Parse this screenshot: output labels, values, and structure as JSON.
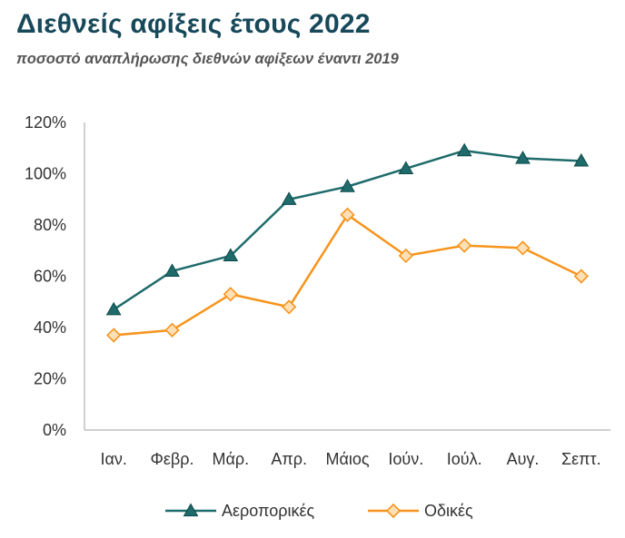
{
  "header": {
    "title": "Διεθνείς αφίξεις έτους 2022",
    "subtitle": "ποσοστό αναπλήρωσης διεθνών αφίξεων έναντι 2019"
  },
  "colors": {
    "title": "#17495a",
    "air": "#1f6b6b",
    "road": "#f7941d",
    "axis": "#bfbfbf"
  },
  "chart_data": {
    "type": "line",
    "title": "Διεθνείς αφίξεις έτους 2022",
    "subtitle": "ποσοστό αναπλήρωσης διεθνών αφίξεων έναντι 2019",
    "categories": [
      "Ιαν.",
      "Φεβρ.",
      "Μάρ.",
      "Απρ.",
      "Μάιος",
      "Ιούν.",
      "Ιούλ.",
      "Αυγ.",
      "Σεπτ."
    ],
    "yticks": [
      "0%",
      "20%",
      "40%",
      "60%",
      "80%",
      "100%",
      "120%"
    ],
    "ylim": [
      0,
      120
    ],
    "grid": false,
    "legend": "bottom",
    "series": [
      {
        "name": "Αεροπορικές",
        "marker": "triangle",
        "color": "#1f6b6b",
        "values": [
          47,
          62,
          68,
          90,
          95,
          102,
          109,
          106,
          105
        ]
      },
      {
        "name": "Οδικές",
        "marker": "diamond",
        "color": "#f7941d",
        "values": [
          37,
          39,
          53,
          48,
          84,
          68,
          72,
          71,
          60
        ]
      }
    ]
  }
}
